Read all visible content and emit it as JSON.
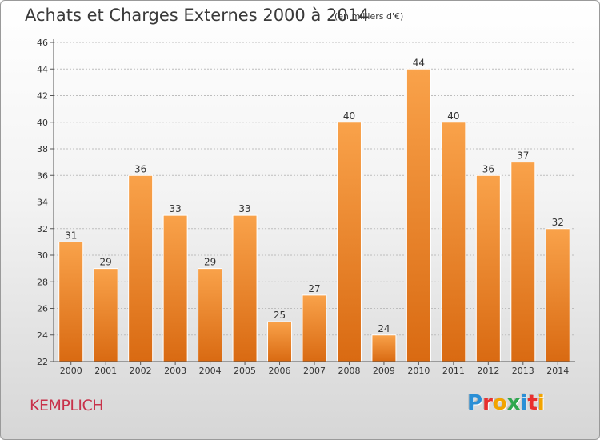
{
  "header": {
    "title": "Achats et Charges Externes 2000 à 2014",
    "subtitle": "(en milliers d'€)"
  },
  "footer": {
    "commune": "KEMPLICH",
    "brand": "Proxiti",
    "brand_letters": [
      "P",
      "r",
      "o",
      "x",
      "i",
      "t",
      "i"
    ],
    "brand_colors": [
      "#2a8fd6",
      "#e8302f",
      "#f2a400",
      "#2fa84f",
      "#2a8fd6",
      "#e8302f",
      "#f2a400"
    ]
  },
  "colors": {
    "bar_light": "#f9a24a",
    "bar_dark": "#d96a12",
    "axis": "#555555",
    "grid": "#bdbdbd"
  },
  "chart_data": {
    "type": "bar",
    "title": "Achats et Charges Externes 2000 à 2014",
    "subtitle": "(en milliers d'€)",
    "categories": [
      "2000",
      "2001",
      "2002",
      "2003",
      "2004",
      "2005",
      "2006",
      "2007",
      "2008",
      "2009",
      "2010",
      "2011",
      "2012",
      "2013",
      "2014"
    ],
    "values": [
      31,
      29,
      36,
      33,
      29,
      33,
      25,
      27,
      40,
      24,
      44,
      40,
      36,
      37,
      32
    ],
    "ylim": [
      22,
      46
    ],
    "yticks": [
      22,
      24,
      26,
      28,
      30,
      32,
      34,
      36,
      38,
      40,
      42,
      44,
      46
    ],
    "grid": true,
    "legend": "none"
  }
}
